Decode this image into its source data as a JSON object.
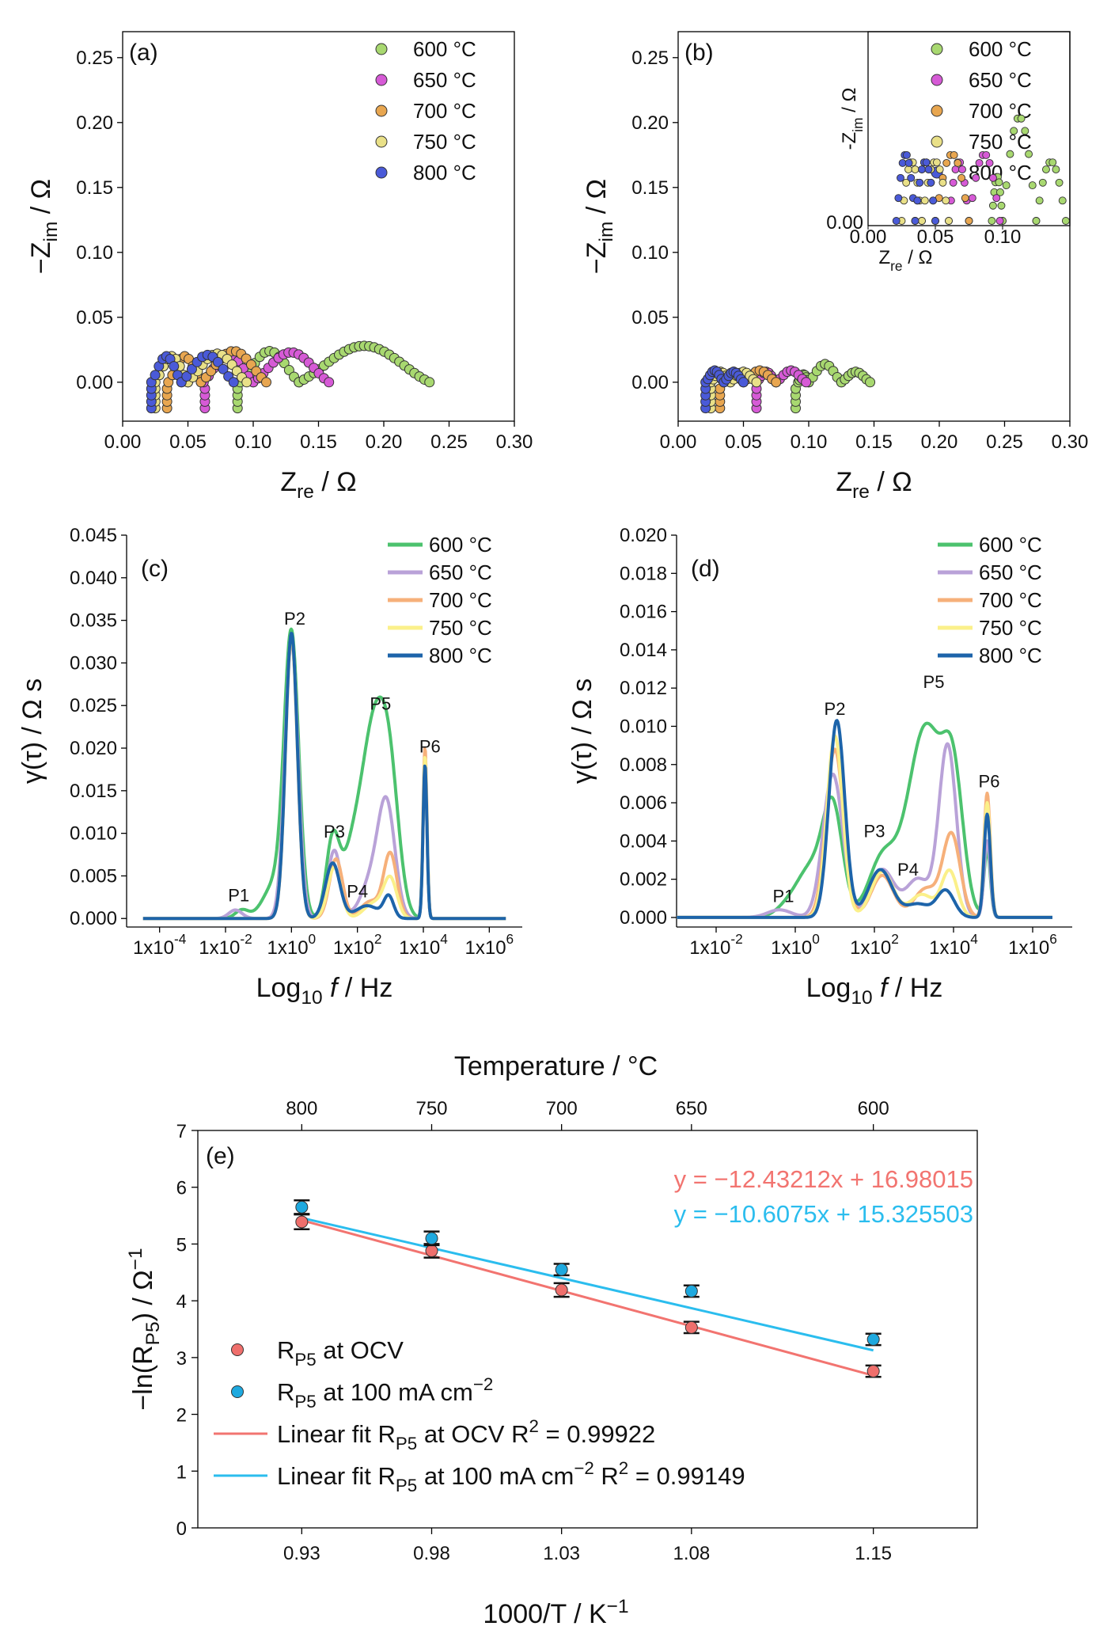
{
  "chart_data": [
    {
      "id": "a",
      "type": "scatter",
      "panel_label": "(a)",
      "xlabel": "Z",
      "xlabel_sub": "re",
      "xlabel_unit": " / Ω",
      "ylabel": "−Z",
      "ylabel_sub": "im",
      "ylabel_unit": " / Ω",
      "xlim": [
        0,
        0.3
      ],
      "ylim": [
        -0.03,
        0.27
      ],
      "xticks": [
        "0.00",
        "0.05",
        "0.10",
        "0.15",
        "0.20",
        "0.25",
        "0.30"
      ],
      "yticks": [
        "0.00",
        "0.05",
        "0.10",
        "0.15",
        "0.20",
        "0.25"
      ],
      "legend": [
        "600 °C",
        "650 °C",
        "700 °C",
        "750 °C",
        "800 °C"
      ],
      "series": [
        {
          "name": "600 °C",
          "color": "#a8d870",
          "start": 0.088,
          "arcs": [
            [
              0.09,
              0.135,
              0.024
            ],
            [
              0.135,
              0.235,
              0.028
            ]
          ]
        },
        {
          "name": "650 °C",
          "color": "#d65ad6",
          "start": 0.063,
          "arcs": [
            [
              0.062,
              0.1,
              0.022
            ],
            [
              0.1,
              0.158,
              0.023
            ]
          ]
        },
        {
          "name": "700 °C",
          "color": "#e8a650",
          "start": 0.034,
          "arcs": [
            [
              0.035,
              0.06,
              0.02
            ],
            [
              0.06,
              0.11,
              0.024
            ]
          ]
        },
        {
          "name": "750 °C",
          "color": "#e9e088",
          "start": 0.025,
          "arcs": [
            [
              0.025,
              0.05,
              0.02
            ],
            [
              0.05,
              0.095,
              0.022
            ]
          ]
        },
        {
          "name": "800 °C",
          "color": "#4a5ad8",
          "start": 0.022,
          "arcs": [
            [
              0.022,
              0.045,
              0.02
            ],
            [
              0.045,
              0.085,
              0.021
            ]
          ]
        }
      ]
    },
    {
      "id": "b",
      "type": "scatter",
      "panel_label": "(b)",
      "xlabel": "Z",
      "xlabel_sub": "re",
      "xlabel_unit": " / Ω",
      "ylabel": "−Z",
      "ylabel_sub": "im",
      "ylabel_unit": " / Ω",
      "xlim": [
        0,
        0.3
      ],
      "ylim": [
        -0.03,
        0.27
      ],
      "xticks": [
        "0.00",
        "0.05",
        "0.10",
        "0.15",
        "0.20",
        "0.25",
        "0.30"
      ],
      "yticks": [
        "0.00",
        "0.05",
        "0.10",
        "0.15",
        "0.20",
        "0.25"
      ],
      "legend": [
        "600 °C",
        "650 °C",
        "700 °C",
        "750 °C",
        "800 °C"
      ],
      "inset": {
        "xlabel": "Z",
        "xlabel_sub": "re",
        "ylabel": "-Z",
        "ylabel_sub": "im",
        "unit": " / Ω",
        "xticks": [
          "0.00",
          "0.05",
          "0.10"
        ],
        "yticks": [
          "0.00"
        ],
        "xlim": [
          0,
          0.15
        ]
      },
      "series": [
        {
          "name": "600 °C",
          "color": "#a8d870",
          "start": 0.09,
          "arcs": [
            [
              0.092,
              0.1,
              0.006
            ],
            [
              0.1,
              0.125,
              0.014
            ],
            [
              0.125,
              0.147,
              0.008
            ]
          ]
        },
        {
          "name": "650 °C",
          "color": "#d65ad6",
          "start": 0.06,
          "arcs": [
            [
              0.06,
              0.075,
              0.008
            ],
            [
              0.075,
              0.098,
              0.009
            ]
          ]
        },
        {
          "name": "700 °C",
          "color": "#e8a650",
          "start": 0.032,
          "arcs": [
            [
              0.035,
              0.05,
              0.008
            ],
            [
              0.05,
              0.075,
              0.009
            ]
          ]
        },
        {
          "name": "750 °C",
          "color": "#e9e088",
          "start": 0.025,
          "arcs": [
            [
              0.025,
              0.04,
              0.008
            ],
            [
              0.04,
              0.06,
              0.008
            ]
          ]
        },
        {
          "name": "800 °C",
          "color": "#4a5ad8",
          "start": 0.021,
          "arcs": [
            [
              0.021,
              0.035,
              0.009
            ],
            [
              0.035,
              0.05,
              0.008
            ]
          ]
        }
      ]
    },
    {
      "id": "c",
      "type": "line",
      "panel_label": "(c)",
      "xlabel": "Log",
      "xlabel_sub": "10",
      "xlabel_unit": " f / Hz",
      "ylabel": "γ(τ) / Ω s",
      "xlim": [
        -5,
        7
      ],
      "ylim": [
        -0.001,
        0.045
      ],
      "xticks": [
        [
          "1x10",
          "-4",
          -4
        ],
        [
          "1x10",
          "-2",
          -2
        ],
        [
          "1x10",
          "0",
          0
        ],
        [
          "1x10",
          "2",
          2
        ],
        [
          "1x10",
          "4",
          4
        ],
        [
          "1x10",
          "6",
          6
        ]
      ],
      "yticks": [
        "0.000",
        "0.005",
        "0.010",
        "0.015",
        "0.020",
        "0.025",
        "0.030",
        "0.035",
        "0.040",
        "0.045"
      ],
      "legend": [
        "600 °C",
        "650 °C",
        "700 °C",
        "750 °C",
        "800 °C"
      ],
      "peak_labels": [
        {
          "text": "P1",
          "x": -1.6,
          "y": 0.002
        },
        {
          "text": "P2",
          "x": 0.1,
          "y": 0.0345
        },
        {
          "text": "P3",
          "x": 1.3,
          "y": 0.0095
        },
        {
          "text": "P4",
          "x": 2.0,
          "y": 0.0025
        },
        {
          "text": "P5",
          "x": 2.7,
          "y": 0.0245
        },
        {
          "text": "P6",
          "x": 4.2,
          "y": 0.0195
        }
      ],
      "series": [
        {
          "name": "600 °C",
          "color": "#4cc26e",
          "width": 4,
          "peaks": [
            [
              -1.5,
              0.001,
              0.2
            ],
            [
              -0.5,
              0.004,
              0.35
            ],
            [
              0.0,
              0.0325,
              0.22
            ],
            [
              1.25,
              0.009,
              0.2
            ],
            [
              1.8,
              0.006,
              0.3
            ],
            [
              2.5,
              0.022,
              0.38
            ],
            [
              3.0,
              0.012,
              0.28
            ],
            [
              4.05,
              0.018,
              0.06
            ]
          ]
        },
        {
          "name": "650 °C",
          "color": "#b9a2d8",
          "width": 4,
          "peaks": [
            [
              -1.7,
              0.001,
              0.2
            ],
            [
              0.0,
              0.0325,
              0.2
            ],
            [
              1.3,
              0.008,
              0.2
            ],
            [
              2.5,
              0.005,
              0.35
            ],
            [
              2.9,
              0.0115,
              0.25
            ],
            [
              4.05,
              0.018,
              0.06
            ]
          ]
        },
        {
          "name": "700 °C",
          "color": "#f6b07a",
          "width": 4,
          "peaks": [
            [
              0.0,
              0.033,
              0.18
            ],
            [
              1.35,
              0.007,
              0.2
            ],
            [
              2.4,
              0.002,
              0.3
            ],
            [
              3.0,
              0.0075,
              0.2
            ],
            [
              4.05,
              0.02,
              0.06
            ]
          ]
        },
        {
          "name": "750 °C",
          "color": "#fbf08a",
          "width": 4,
          "peaks": [
            [
              0.0,
              0.0333,
              0.18
            ],
            [
              1.3,
              0.006,
              0.2
            ],
            [
              2.5,
              0.0018,
              0.3
            ],
            [
              3.0,
              0.0045,
              0.2
            ],
            [
              4.05,
              0.019,
              0.06
            ]
          ]
        },
        {
          "name": "800 °C",
          "color": "#1d64aa",
          "width": 4,
          "peaks": [
            [
              0.0,
              0.0335,
              0.18
            ],
            [
              1.25,
              0.0065,
              0.22
            ],
            [
              2.3,
              0.0015,
              0.35
            ],
            [
              2.95,
              0.0025,
              0.15
            ],
            [
              4.05,
              0.018,
              0.06
            ]
          ]
        }
      ]
    },
    {
      "id": "d",
      "type": "line",
      "panel_label": "(d)",
      "xlabel": "Log",
      "xlabel_sub": "10",
      "xlabel_unit": " f / Hz",
      "ylabel": "γ(τ) / Ω s",
      "xlim": [
        -3,
        7
      ],
      "ylim": [
        -0.0005,
        0.02
      ],
      "xticks": [
        [
          "1x10",
          "-2",
          -2
        ],
        [
          "1x10",
          "0",
          0
        ],
        [
          "1x10",
          "2",
          2
        ],
        [
          "1x10",
          "4",
          4
        ],
        [
          "1x10",
          "6",
          6
        ]
      ],
      "yticks": [
        "0.000",
        "0.002",
        "0.004",
        "0.006",
        "0.008",
        "0.010",
        "0.012",
        "0.014",
        "0.016",
        "0.018",
        "0.020"
      ],
      "legend": [
        "600 °C",
        "650 °C",
        "700 °C",
        "750 °C",
        "800 °C"
      ],
      "peak_labels": [
        {
          "text": "P1",
          "x": -0.3,
          "y": 0.0008
        },
        {
          "text": "P2",
          "x": 1.0,
          "y": 0.0106
        },
        {
          "text": "P3",
          "x": 2.0,
          "y": 0.0042
        },
        {
          "text": "P4",
          "x": 2.85,
          "y": 0.0022
        },
        {
          "text": "P5",
          "x": 3.5,
          "y": 0.012
        },
        {
          "text": "P6",
          "x": 4.9,
          "y": 0.0068
        }
      ],
      "series": [
        {
          "name": "600 °C",
          "color": "#4cc26e",
          "width": 4,
          "peaks": [
            [
              -0.2,
              0.0005,
              0.3
            ],
            [
              0.4,
              0.0025,
              0.35
            ],
            [
              0.95,
              0.0055,
              0.25
            ],
            [
              2.2,
              0.003,
              0.35
            ],
            [
              3.3,
              0.01,
              0.45
            ],
            [
              4.0,
              0.006,
              0.25
            ],
            [
              4.85,
              0.0035,
              0.08
            ]
          ]
        },
        {
          "name": "650 °C",
          "color": "#b9a2d8",
          "width": 4,
          "peaks": [
            [
              -0.4,
              0.0004,
              0.3
            ],
            [
              0.95,
              0.0075,
              0.25
            ],
            [
              2.2,
              0.0025,
              0.3
            ],
            [
              3.1,
              0.002,
              0.3
            ],
            [
              3.85,
              0.009,
              0.22
            ],
            [
              4.85,
              0.004,
              0.08
            ]
          ]
        },
        {
          "name": "700 °C",
          "color": "#f6b07a",
          "width": 4,
          "peaks": [
            [
              1.0,
              0.0088,
              0.22
            ],
            [
              2.2,
              0.0022,
              0.28
            ],
            [
              3.3,
              0.0015,
              0.3
            ],
            [
              3.95,
              0.0043,
              0.22
            ],
            [
              4.85,
              0.0065,
              0.08
            ]
          ]
        },
        {
          "name": "750 °C",
          "color": "#fbf08a",
          "width": 4,
          "peaks": [
            [
              1.0,
              0.0095,
              0.2
            ],
            [
              2.2,
              0.0024,
              0.28
            ],
            [
              3.2,
              0.0012,
              0.3
            ],
            [
              3.9,
              0.0024,
              0.2
            ],
            [
              4.85,
              0.006,
              0.08
            ]
          ]
        },
        {
          "name": "800 °C",
          "color": "#1d64aa",
          "width": 4,
          "peaks": [
            [
              1.05,
              0.0103,
              0.2
            ],
            [
              2.15,
              0.0025,
              0.3
            ],
            [
              3.1,
              0.0007,
              0.3
            ],
            [
              3.8,
              0.0014,
              0.22
            ],
            [
              4.85,
              0.0054,
              0.08
            ]
          ]
        }
      ]
    },
    {
      "id": "e",
      "type": "scatter",
      "panel_label": "(e)",
      "xlabel": "1000/T / K",
      "xlabel_sup": "−1",
      "ylabel": "−ln(R",
      "ylabel_sub": "P5",
      "ylabel_unit": ") / Ω",
      "ylabel_sup": "−1",
      "top_xlabel": "Temperature / °C",
      "top_ticks": [
        "800",
        "750",
        "700",
        "650",
        "600"
      ],
      "x": [
        0.93,
        0.98,
        1.03,
        1.08,
        1.15
      ],
      "xticks": [
        "0.93",
        "0.98",
        "1.03",
        "1.08",
        "1.15"
      ],
      "xlim": [
        0.89,
        1.19
      ],
      "ylim": [
        0,
        7
      ],
      "yticks": [
        "0",
        "1",
        "2",
        "3",
        "4",
        "5",
        "6",
        "7"
      ],
      "series": [
        {
          "name": "R_P5 at OCV",
          "color": "#ef6f6c",
          "values": [
            5.39,
            4.88,
            4.19,
            3.53,
            2.76
          ],
          "errors": [
            0.13,
            0.12,
            0.12,
            0.1,
            0.1
          ],
          "fit": {
            "slope": -12.43212,
            "intercept": 16.98015,
            "color": "#f27470",
            "equation": "y = −12.43212x + 16.98015",
            "r2": "0.99922"
          }
        },
        {
          "name": "R_P5 at 100 mA cm^-2",
          "color": "#1ea9df",
          "values": [
            5.65,
            5.1,
            4.55,
            4.17,
            3.32
          ],
          "errors": [
            0.12,
            0.12,
            0.1,
            0.1,
            0.1
          ],
          "fit": {
            "slope": -10.6075,
            "intercept": 15.325503,
            "color": "#2bbdee",
            "equation": "y = −10.6075x + 15.325503",
            "r2": "0.99149"
          }
        }
      ],
      "legend": [
        {
          "kind": "point",
          "main": "R",
          "sub": "P5",
          "tail": " at OCV",
          "color": "#ef6f6c"
        },
        {
          "kind": "point",
          "main": "R",
          "sub": "P5",
          "tail": " at 100 mA cm",
          "sup": "−2",
          "color": "#1ea9df"
        },
        {
          "kind": "line",
          "pre": "Linear fit R",
          "sub": "P5",
          "tail": " at OCV R",
          "sup": "2",
          "post": " = 0.99922",
          "color": "#f27470"
        },
        {
          "kind": "line",
          "pre": "Linear fit R",
          "sub": "P5",
          "tail": " at 100 mA cm",
          "sup": "−2",
          "tail2": " R",
          "sup2": "2",
          "post": " = 0.99149",
          "color": "#2bbdee"
        }
      ]
    }
  ]
}
